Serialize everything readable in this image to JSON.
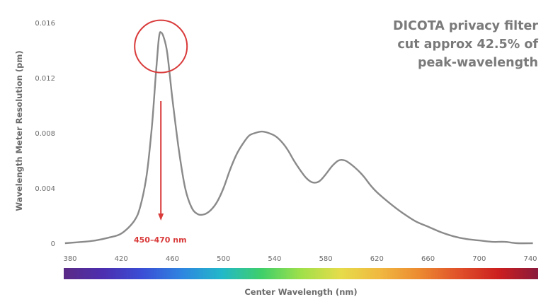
{
  "chart_data": {
    "type": "line",
    "xlabel": "Center Wavelength (nm)",
    "ylabel": "Wavelength Meter Resolution (pm)",
    "x_ticks": [
      "380",
      "420",
      "460",
      "500",
      "540",
      "580",
      "620",
      "660",
      "700",
      "740"
    ],
    "y_ticks": [
      "0",
      "0.004",
      "0.008",
      "0.012",
      "0.016"
    ],
    "xlim": [
      380,
      740
    ],
    "ylim": [
      0,
      0.016
    ],
    "series": [
      {
        "color": "#8a8a8a",
        "x": [
          376,
          390,
          400,
          410,
          420,
          430,
          435,
          440,
          444,
          447,
          449,
          450,
          451,
          453,
          456,
          460,
          465,
          470,
          475,
          480,
          485,
          490,
          495,
          500,
          505,
          510,
          515,
          520,
          525,
          530,
          535,
          540,
          545,
          550,
          555,
          560,
          565,
          570,
          575,
          580,
          585,
          590,
          595,
          600,
          605,
          610,
          615,
          620,
          630,
          640,
          650,
          660,
          670,
          680,
          690,
          700,
          710,
          720,
          730,
          742
        ],
        "y": [
          0.0,
          0.0001,
          0.0002,
          0.0004,
          0.0007,
          0.0016,
          0.0027,
          0.005,
          0.0085,
          0.0122,
          0.0145,
          0.0152,
          0.0153,
          0.015,
          0.0138,
          0.0105,
          0.0068,
          0.004,
          0.0026,
          0.0021,
          0.0021,
          0.0024,
          0.003,
          0.004,
          0.0053,
          0.0064,
          0.0072,
          0.0078,
          0.008,
          0.0081,
          0.008,
          0.0078,
          0.0074,
          0.0068,
          0.006,
          0.0053,
          0.0047,
          0.0044,
          0.0045,
          0.005,
          0.0056,
          0.006,
          0.006,
          0.0057,
          0.0053,
          0.0048,
          0.0042,
          0.0037,
          0.0029,
          0.0022,
          0.0016,
          0.0012,
          0.0008,
          0.0005,
          0.0003,
          0.0002,
          0.0001,
          0.0001,
          0.0,
          0.0
        ]
      }
    ],
    "grid": false,
    "legend": "none",
    "spectrum_colors": [
      "#5b2a86",
      "#4c2fb0",
      "#3a4fd6",
      "#2f86e0",
      "#22b8c9",
      "#3fcf6a",
      "#9fe04a",
      "#e6dc4a",
      "#f0b840",
      "#ec8a30",
      "#e0502a",
      "#cc1f1f",
      "#8a1a3c"
    ],
    "annotations": {
      "title_lines": [
        "DICOTA privacy filter",
        "cut approx 42.5% of",
        "peak-wavelength"
      ],
      "range_label": "450–470 nm",
      "highlight_color": "#d93a3a"
    }
  }
}
